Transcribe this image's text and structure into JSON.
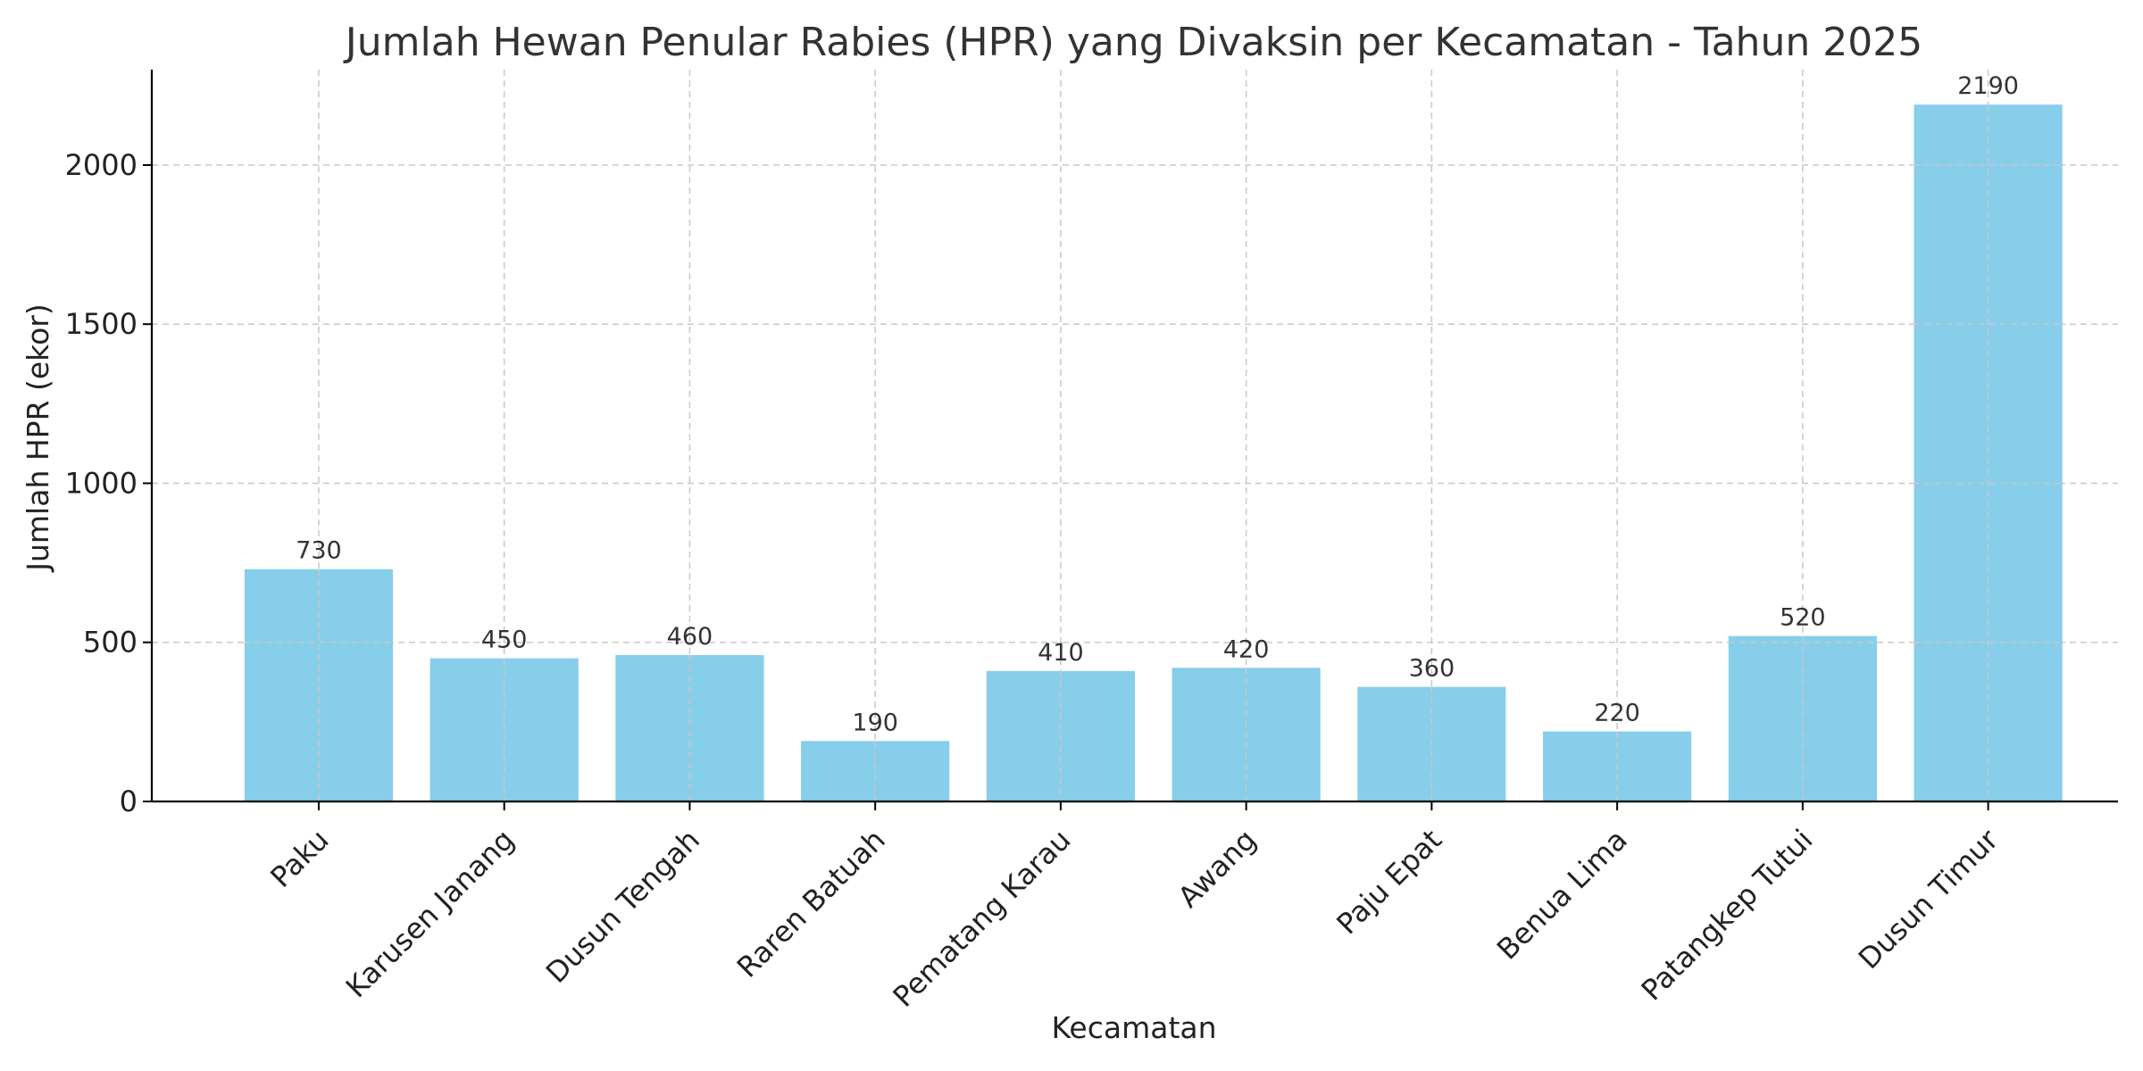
{
  "chart_data": {
    "type": "bar",
    "title": "Jumlah Hewan Penular Rabies (HPR) yang Divaksin per Kecamatan - Tahun 2025",
    "xlabel": "Kecamatan",
    "ylabel": "Jumlah HPR (ekor)",
    "categories": [
      "Paku",
      "Karusen Janang",
      "Dusun Tengah",
      "Raren Batuah",
      "Pematang Karau",
      "Awang",
      "Paju Epat",
      "Benua Lima",
      "Patangkep Tutui",
      "Dusun Timur"
    ],
    "values": [
      730,
      450,
      460,
      190,
      410,
      420,
      360,
      220,
      520,
      2190
    ],
    "data_labels": [
      "730",
      "450",
      "460",
      "190",
      "410",
      "420",
      "360",
      "220",
      "520",
      "2190"
    ],
    "ylim": [
      0,
      2300
    ],
    "yticks": [
      0,
      500,
      1000,
      1500,
      2000
    ],
    "ytick_labels": [
      "0",
      "500",
      "1000",
      "1500",
      "2000"
    ],
    "grid": true,
    "bar_color": "#87ceeb",
    "tick_label_rotation": 45
  }
}
